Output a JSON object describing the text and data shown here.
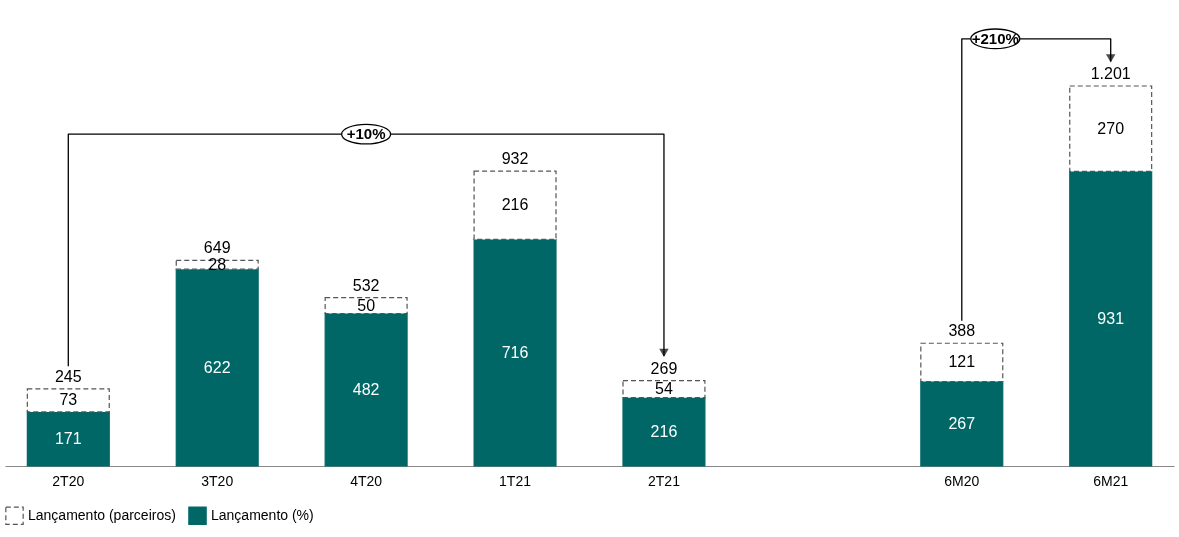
{
  "chart_data": {
    "type": "bar",
    "stacked": true,
    "categories": [
      "2T20",
      "3T20",
      "4T20",
      "1T21",
      "2T21",
      null,
      "6M20",
      "6M21"
    ],
    "series": [
      {
        "name": "Lançamento (%)",
        "color": "#006666",
        "values": [
          171,
          622,
          482,
          716,
          216,
          null,
          267,
          931
        ]
      },
      {
        "name": "Lançamento (parceiros)",
        "color": "#ffffff",
        "line_style": "dashed",
        "values": [
          73,
          28,
          50,
          216,
          54,
          null,
          121,
          270
        ]
      }
    ],
    "totals": [
      "245",
      "649",
      "532",
      "932",
      "269",
      null,
      "388",
      "1.201"
    ],
    "data_labels": true,
    "legend": "bottom",
    "grid": false,
    "annotations": [
      "+10%",
      "+210%"
    ]
  }
}
